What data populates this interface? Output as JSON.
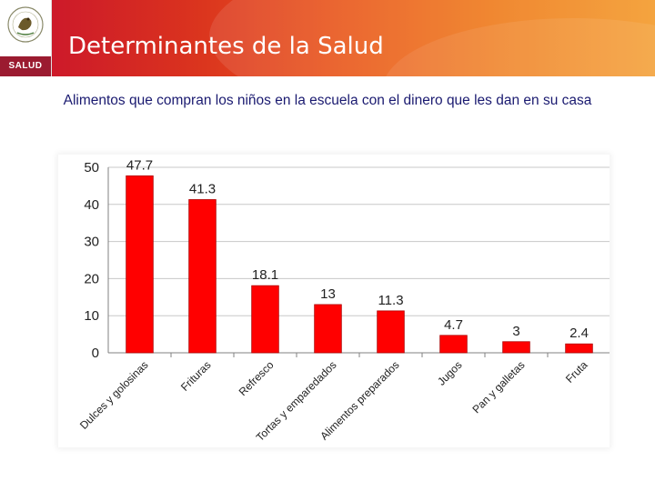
{
  "header": {
    "title": "Determinantes de la Salud",
    "logo_label": "SALUD",
    "colors": {
      "start": "#c8102e",
      "end": "#f39a2a",
      "logo_bar": "#9b1b30"
    }
  },
  "subtitle": "Alimentos que compran los niños en la escuela  con el dinero que les dan en su casa",
  "chart_data": {
    "type": "bar",
    "title": "",
    "xlabel": "",
    "ylabel": "",
    "categories": [
      "Dulces y golosinas",
      "Frituras",
      "Refresco",
      "Tortas y emparedados",
      "Alimentos preparados",
      "Jugos",
      "Pan y galletas",
      "Fruta"
    ],
    "values": [
      47.7,
      41.3,
      18.1,
      13,
      11.3,
      4.7,
      3,
      2.4
    ],
    "value_labels": [
      "47.7",
      "41.3",
      "18.1",
      "13",
      "11.3",
      "4.7",
      "3",
      "2.4"
    ],
    "yticks": [
      0,
      10,
      20,
      30,
      40,
      50
    ],
    "ylim": [
      0,
      50
    ],
    "grid": true,
    "bar_color": "#ff0000"
  }
}
